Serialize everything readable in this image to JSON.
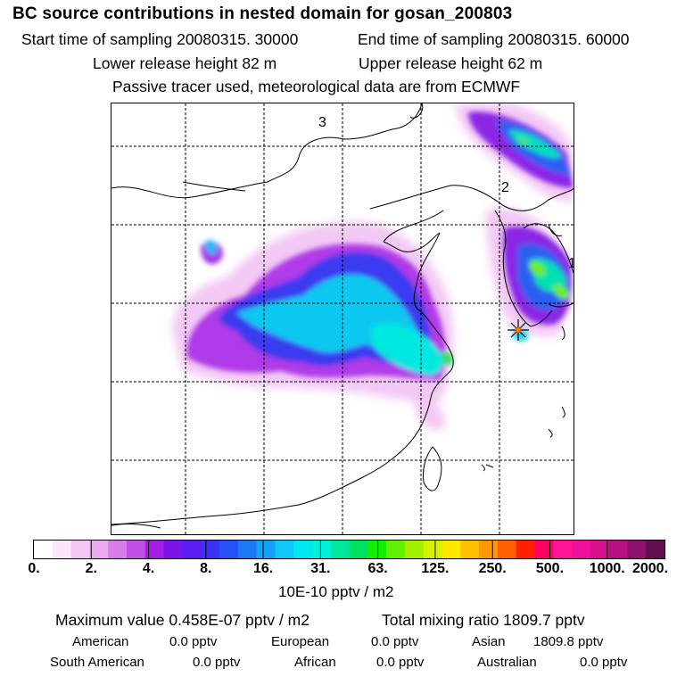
{
  "title": "BC  source contributions in nested domain for gosan_200803",
  "sampling": {
    "start": "Start time of sampling 20080315. 30000",
    "end": "End time of sampling 20080315. 60000"
  },
  "release": {
    "lower": "Lower release height   82 m",
    "upper": "Upper release height   62 m"
  },
  "tracer_note": "Passive tracer used, meteorological data are from ECMWF",
  "map": {
    "region_labels": [
      "3",
      "2",
      "1"
    ],
    "receptor_marker": "star-icon"
  },
  "colorbar": {
    "colors": [
      "#ffffff",
      "#fbe6fb",
      "#f3c6f3",
      "#ecaaf0",
      "#d87de8",
      "#c24ee8",
      "#a21ee6",
      "#7a14e8",
      "#5a1cf0",
      "#3c32f5",
      "#2452f5",
      "#1c78f5",
      "#16a0f5",
      "#10c8f5",
      "#00e8f0",
      "#00f0d8",
      "#00e8a0",
      "#00e060",
      "#10f000",
      "#60f000",
      "#a0f000",
      "#d8f000",
      "#ffe800",
      "#ffc000",
      "#ff9800",
      "#ff6000",
      "#ff2000",
      "#ff0060",
      "#ff1498",
      "#f0109c",
      "#d81090",
      "#b41080",
      "#901070",
      "#601050"
    ],
    "tick_labels": [
      "0.",
      "2.",
      "4.",
      "8.",
      "16.",
      "31.",
      "63.",
      "125.",
      "250.",
      "500.",
      "1000.",
      "2000."
    ],
    "units": "10E-10 pptv / m2"
  },
  "summary": {
    "maximum": "Maximum value  0.458E-07 pptv / m2",
    "total": "Total mixing ratio     1809.7 pptv"
  },
  "contributions": [
    {
      "name": "American",
      "value": "0.0 pptv"
    },
    {
      "name": "European",
      "value": "0.0 pptv"
    },
    {
      "name": "Asian",
      "value": "1809.8 pptv"
    },
    {
      "name": "South American",
      "value": "0.0 pptv"
    },
    {
      "name": "African",
      "value": "0.0 pptv"
    },
    {
      "name": "Australian",
      "value": "0.0 pptv"
    }
  ]
}
